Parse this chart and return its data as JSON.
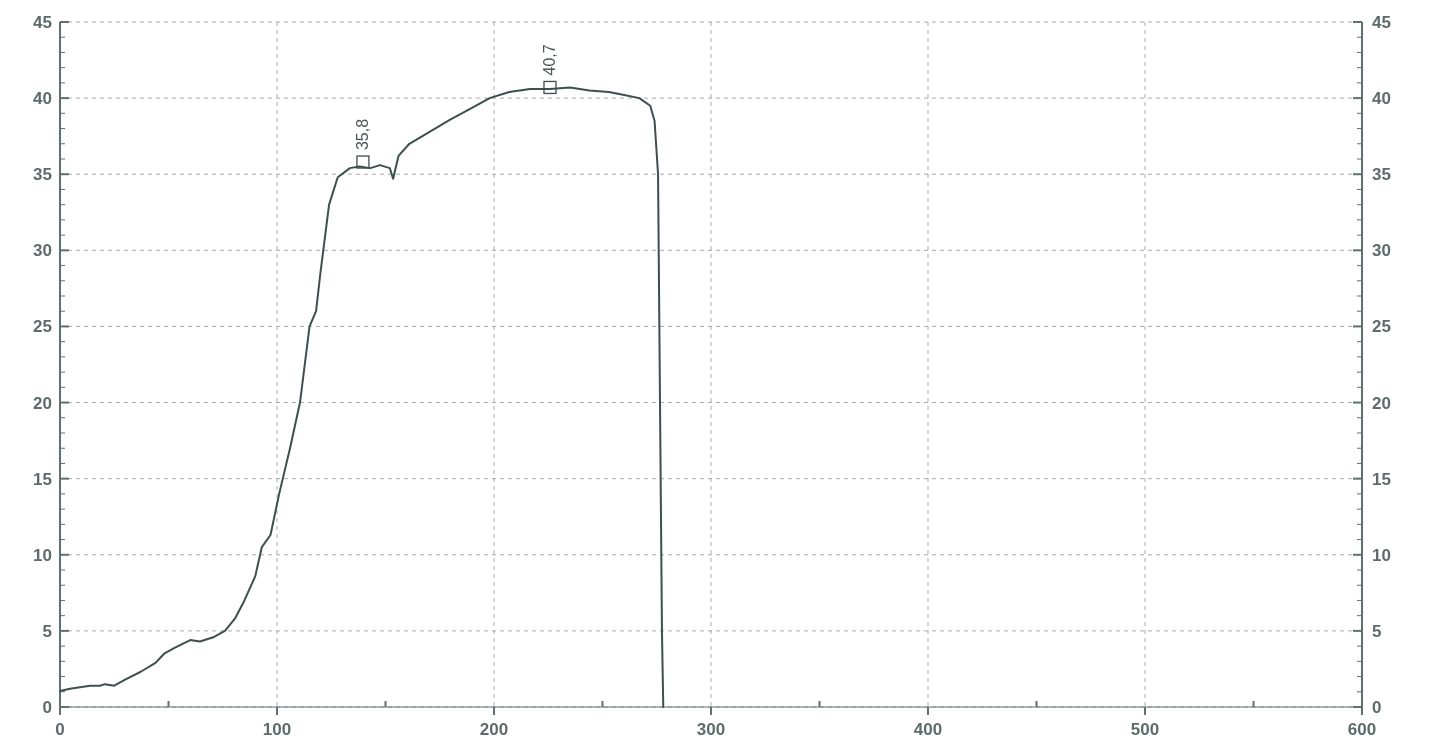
{
  "chart_data": {
    "type": "line",
    "series": [
      {
        "color": "#3d4f4f",
        "x": [
          0,
          4.6,
          13.8,
          18.4,
          20.7,
          25,
          30,
          37,
          44,
          48,
          53,
          60,
          64.5,
          71,
          76,
          80.6,
          85,
          90,
          93,
          97,
          101,
          106,
          110.6,
          115,
          118,
          120,
          124,
          128,
          133.6,
          138,
          143,
          147.5,
          152,
          153.5,
          156,
          161,
          170.5,
          180,
          189,
          198,
          207,
          216.6,
          225.8,
          235,
          244,
          253,
          260,
          267,
          272,
          274,
          275.6,
          276.5,
          277.4,
          278
        ],
        "values": [
          1.05,
          1.2,
          1.4,
          1.4,
          1.5,
          1.4,
          1.8,
          2.3,
          2.9,
          3.5,
          3.9,
          4.4,
          4.3,
          4.6,
          5.0,
          5.8,
          7.0,
          8.6,
          10.5,
          11.3,
          14,
          17,
          20,
          25,
          26,
          28.5,
          33,
          34.8,
          35.4,
          35.5,
          35.4,
          35.6,
          35.4,
          34.7,
          36.2,
          37,
          37.8,
          38.6,
          39.3,
          40.0,
          40.4,
          40.6,
          40.6,
          40.7,
          40.5,
          40.4,
          40.2,
          40.0,
          39.5,
          38.5,
          35,
          20,
          5,
          0
        ]
      }
    ],
    "xlim": [
      0,
      600
    ],
    "xticks": [
      0,
      100,
      200,
      300,
      400,
      500,
      600
    ],
    "ylim": [
      0,
      45
    ],
    "yticks": [
      0,
      5,
      10,
      15,
      20,
      25,
      30,
      35,
      40,
      45
    ],
    "y2lim": [
      0,
      45
    ],
    "y2ticks": [
      0,
      5,
      10,
      15,
      20,
      25,
      30,
      35,
      40,
      45
    ],
    "grid": true,
    "marker": "none",
    "line_style": "solid",
    "annotations": [
      {
        "text": "35,8",
        "x": 139.6,
        "y": 35.8
      },
      {
        "text": "40,7",
        "x": 225.8,
        "y": 40.7
      }
    ]
  }
}
